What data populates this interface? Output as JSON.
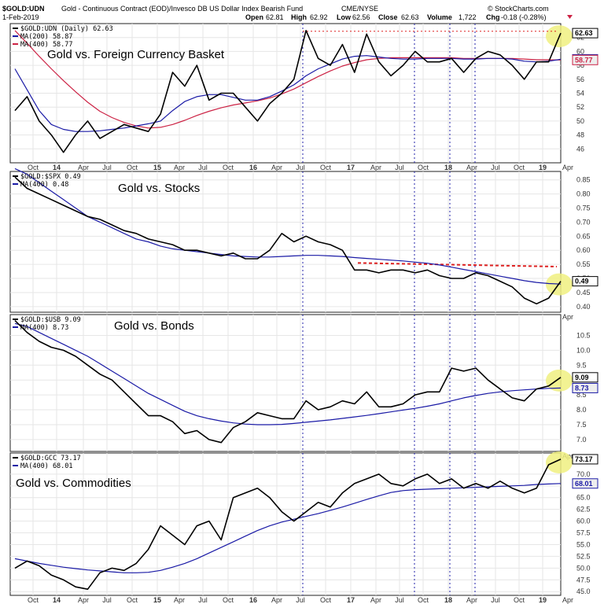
{
  "header": {
    "symbol": "$GOLD:UDN",
    "description": "Gold - Continuous Contract (EOD)/Invesco DB US Dollar Index Bearish Fund",
    "exchange": "CME/NYSE",
    "date": "1-Feb-2019",
    "watermark": "© StockCharts.com",
    "open_label": "Open",
    "open": "62.81",
    "high_label": "High",
    "high": "62.92",
    "low_label": "Low",
    "low": "62.56",
    "close_label": "Close",
    "close": "62.63",
    "volume_label": "Volume",
    "volume": "1,722",
    "chg_label": "Chg",
    "chg": "-0.18 (-0.28%)"
  },
  "colors": {
    "price": "#000000",
    "ma_blue": "#1a1aa6",
    "ma_red": "#cc2244",
    "highlight": "#f0f080",
    "dashed_red": "#dd2222",
    "vline": "#2222aa",
    "grid": "#e6e6e6",
    "badge_bg": "#eeeeee"
  },
  "x_axis_labels": [
    "Oct",
    "14",
    "Apr",
    "Jul",
    "Oct",
    "15",
    "Apr",
    "Jul",
    "Oct",
    "16",
    "Apr",
    "Jul",
    "Oct",
    "17",
    "Apr",
    "Jul",
    "Oct",
    "18",
    "Apr",
    "Jul",
    "Oct",
    "19",
    "Apr"
  ],
  "vertical_markers": [
    "Jul 2016",
    "Oct 2017",
    "Jan 2018",
    "Apr 2018"
  ],
  "chart_data": [
    {
      "type": "line",
      "legend": [
        "$GOLD:UDN (Daily) 62.63",
        "MA(200) 58.87",
        "MA(400) 58.77"
      ],
      "annotation": "Gold vs. Foreign Currency Basket",
      "ylim": [
        44,
        64
      ],
      "y_ticks": [
        46,
        48,
        50,
        52,
        54,
        56,
        58,
        60,
        62
      ],
      "badges": [
        "62.63",
        "58.87",
        "58.77"
      ],
      "resistance_line": 62.9,
      "series": [
        {
          "name": "$GOLD:UDN (Daily)",
          "values": [
            51.5,
            53.5,
            50,
            48,
            45.5,
            48,
            50,
            47.5,
            48.5,
            49.5,
            49,
            48.5,
            51,
            57,
            55,
            58,
            53,
            54,
            54,
            52,
            50,
            52.5,
            54,
            56,
            63,
            59,
            58,
            61,
            57,
            62.5,
            58.5,
            56.5,
            58,
            60,
            58.5,
            58.5,
            59,
            57,
            59,
            60,
            59.5,
            58,
            56,
            58.5,
            58.5,
            62.63
          ]
        },
        {
          "name": "MA(200)",
          "values": [
            57.5,
            54.5,
            51.5,
            49.5,
            48.8,
            48.5,
            48.5,
            48.6,
            48.8,
            49.0,
            49.3,
            49.6,
            50.0,
            51.5,
            52.8,
            53.5,
            53.8,
            53.8,
            53.4,
            53.0,
            53.0,
            53.5,
            54.3,
            55.2,
            56.5,
            57.5,
            58.2,
            58.9,
            59.3,
            59.4,
            59.2,
            59.0,
            58.9,
            58.9,
            59.0,
            59.0,
            59.0,
            58.9,
            58.9,
            59.0,
            59.0,
            58.9,
            58.6,
            58.5,
            58.6,
            58.87
          ]
        },
        {
          "name": "MA(400)",
          "values": [
            63,
            61.2,
            59.3,
            57.5,
            55.8,
            54.2,
            52.7,
            51.4,
            50.5,
            49.8,
            49.3,
            49.0,
            49.1,
            49.5,
            50.1,
            50.8,
            51.4,
            51.9,
            52.3,
            52.6,
            52.9,
            53.3,
            53.9,
            54.6,
            55.5,
            56.4,
            57.2,
            57.9,
            58.4,
            58.8,
            59.0,
            59.1,
            59.1,
            59.1,
            59.1,
            59.1,
            59.1,
            59.0,
            59.0,
            59.0,
            59.0,
            59.0,
            58.9,
            58.8,
            58.8,
            58.77
          ]
        }
      ]
    },
    {
      "type": "line",
      "legend": [
        "$GOLD:$SPX 0.49",
        "MA(400) 0.48"
      ],
      "annotation": "Gold vs. Stocks",
      "ylim": [
        0.38,
        0.88
      ],
      "y_ticks": [
        0.4,
        0.45,
        0.5,
        0.55,
        0.6,
        0.65,
        0.7,
        0.75,
        0.8,
        0.85
      ],
      "badges": [
        "0.49"
      ],
      "resistance_line": [
        0.555,
        0.542
      ],
      "series": [
        {
          "name": "$GOLD:$SPX",
          "values": [
            0.86,
            0.82,
            0.8,
            0.78,
            0.76,
            0.74,
            0.72,
            0.71,
            0.69,
            0.67,
            0.66,
            0.64,
            0.63,
            0.62,
            0.6,
            0.6,
            0.59,
            0.58,
            0.59,
            0.57,
            0.57,
            0.6,
            0.66,
            0.63,
            0.65,
            0.63,
            0.62,
            0.6,
            0.53,
            0.53,
            0.52,
            0.53,
            0.53,
            0.52,
            0.53,
            0.51,
            0.5,
            0.5,
            0.52,
            0.51,
            0.49,
            0.47,
            0.43,
            0.41,
            0.43,
            0.49
          ]
        },
        {
          "name": "MA(400)",
          "values": [
            0.89,
            0.87,
            0.84,
            0.81,
            0.78,
            0.75,
            0.72,
            0.7,
            0.68,
            0.66,
            0.64,
            0.63,
            0.615,
            0.605,
            0.6,
            0.595,
            0.59,
            0.585,
            0.58,
            0.578,
            0.576,
            0.576,
            0.578,
            0.58,
            0.582,
            0.582,
            0.58,
            0.578,
            0.574,
            0.571,
            0.568,
            0.565,
            0.562,
            0.558,
            0.554,
            0.548,
            0.54,
            0.532,
            0.524,
            0.516,
            0.508,
            0.5,
            0.492,
            0.486,
            0.482,
            0.48
          ]
        }
      ]
    },
    {
      "type": "line",
      "legend": [
        "$GOLD:$USB 9.09",
        "MA(400) 8.73"
      ],
      "annotation": "Gold vs. Bonds",
      "ylim": [
        6.6,
        11.2
      ],
      "y_ticks": [
        7.0,
        7.5,
        8.0,
        8.5,
        9.0,
        9.5,
        10.0,
        10.5
      ],
      "badges": [
        "9.09",
        "8.73"
      ],
      "series": [
        {
          "name": "$GOLD:$USB",
          "values": [
            11,
            10.6,
            10.3,
            10.1,
            10,
            9.8,
            9.5,
            9.2,
            9.0,
            8.6,
            8.2,
            7.8,
            7.8,
            7.6,
            7.2,
            7.3,
            7.0,
            6.9,
            7.4,
            7.6,
            7.9,
            7.8,
            7.7,
            7.7,
            8.3,
            8.0,
            8.1,
            8.3,
            8.2,
            8.6,
            8.1,
            8.1,
            8.2,
            8.5,
            8.6,
            8.6,
            9.4,
            9.3,
            9.4,
            9.0,
            8.7,
            8.4,
            8.3,
            8.7,
            8.8,
            9.09
          ]
        },
        {
          "name": "MA(400)",
          "values": [
            10.9,
            10.8,
            10.6,
            10.4,
            10.2,
            10.0,
            9.8,
            9.55,
            9.3,
            9.05,
            8.8,
            8.55,
            8.35,
            8.15,
            7.95,
            7.8,
            7.7,
            7.62,
            7.56,
            7.52,
            7.5,
            7.5,
            7.51,
            7.54,
            7.58,
            7.62,
            7.66,
            7.71,
            7.76,
            7.81,
            7.87,
            7.93,
            7.99,
            8.05,
            8.12,
            8.2,
            8.3,
            8.4,
            8.48,
            8.55,
            8.6,
            8.64,
            8.67,
            8.7,
            8.72,
            8.73
          ]
        }
      ]
    },
    {
      "type": "line",
      "legend": [
        "$GOLD:GCC 73.17",
        "MA(400) 68.01"
      ],
      "annotation": "Gold vs. Commodities",
      "ylim": [
        44.2,
        74.5
      ],
      "y_ticks": [
        45.0,
        47.5,
        50.0,
        52.5,
        55.0,
        57.5,
        60.0,
        62.5,
        65.0,
        67.5,
        70.0
      ],
      "badges": [
        "73.17",
        "68.01"
      ],
      "series": [
        {
          "name": "$GOLD:GCC",
          "values": [
            50,
            51.5,
            50.5,
            48.5,
            47.5,
            46,
            45.5,
            49,
            50,
            49.5,
            51,
            54,
            59,
            57,
            55,
            59,
            60,
            56,
            65,
            66,
            67,
            65,
            62,
            60,
            62,
            64,
            63,
            66,
            68,
            69,
            70,
            68,
            67.5,
            69,
            70,
            68,
            69,
            67,
            68,
            67,
            68.5,
            67,
            66,
            67,
            72,
            73.17
          ]
        },
        {
          "name": "MA(400)",
          "values": [
            52,
            51.5,
            51,
            50.6,
            50.2,
            49.9,
            49.6,
            49.4,
            49.2,
            49.0,
            49.0,
            49.1,
            49.5,
            50.2,
            51.0,
            52.0,
            53.2,
            54.4,
            55.6,
            56.8,
            58.0,
            59.0,
            59.8,
            60.4,
            61.0,
            61.6,
            62.3,
            63.0,
            63.8,
            64.6,
            65.4,
            66.1,
            66.5,
            66.7,
            66.8,
            66.9,
            67.0,
            67.1,
            67.2,
            67.3,
            67.4,
            67.5,
            67.6,
            67.8,
            67.9,
            68.01
          ]
        }
      ]
    }
  ]
}
